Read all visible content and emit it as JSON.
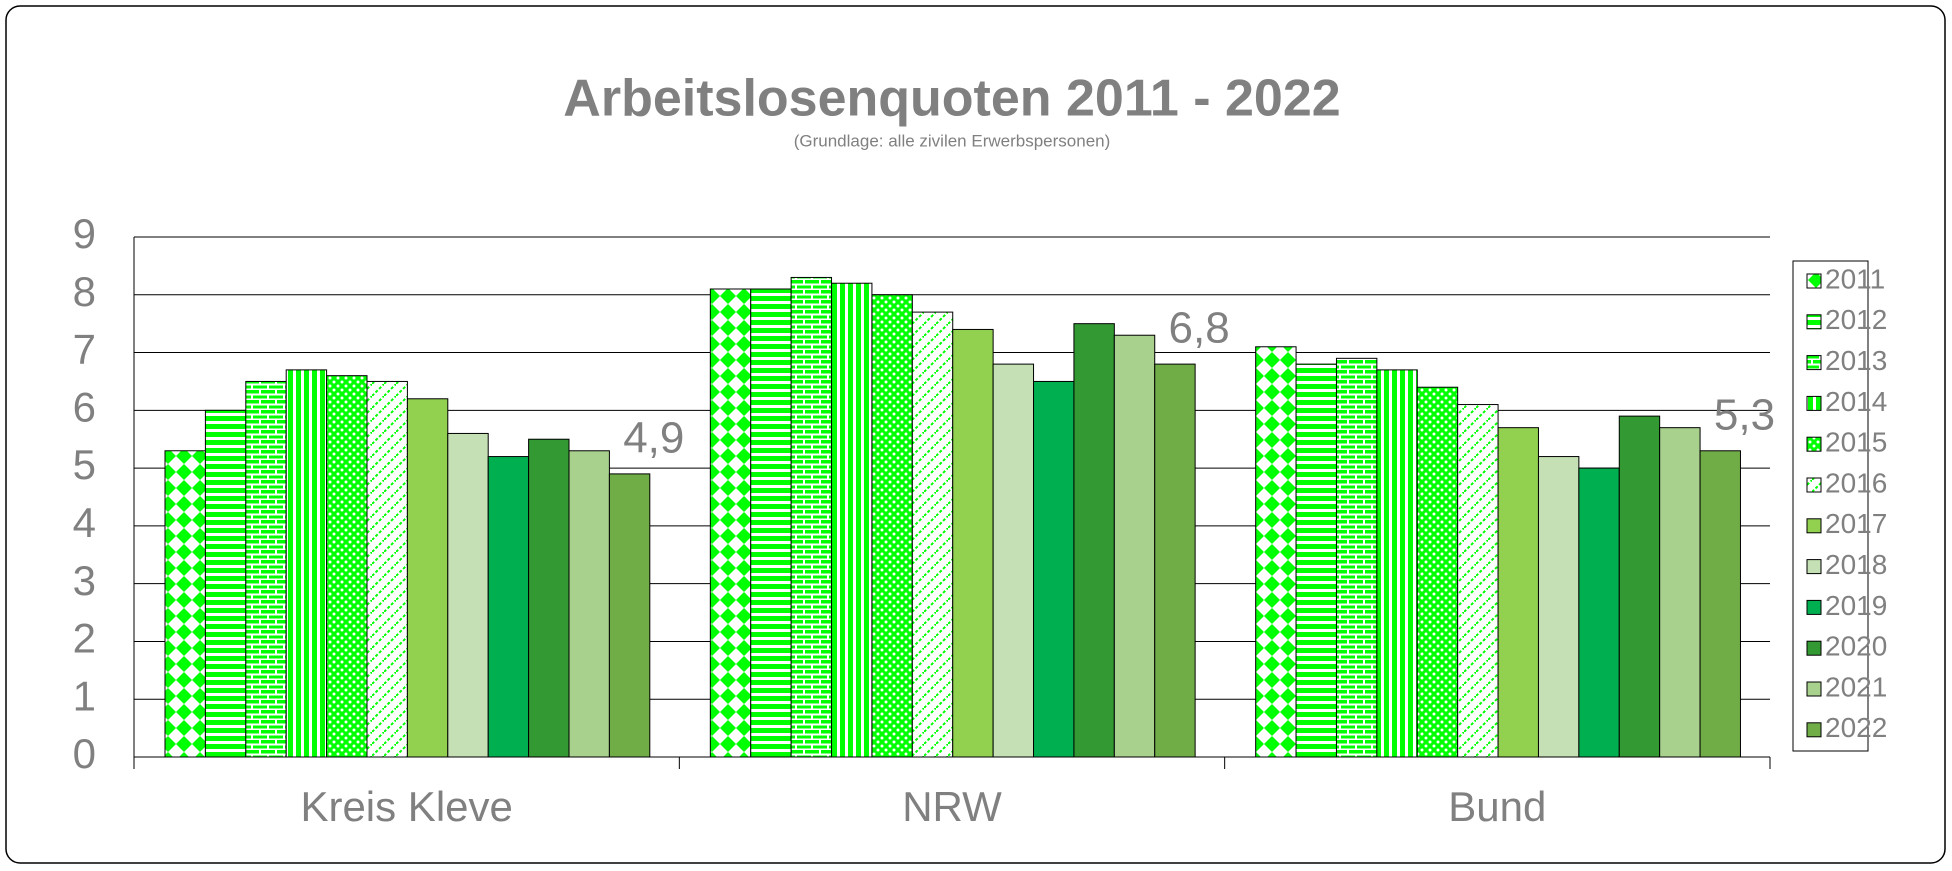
{
  "chart_data": {
    "type": "bar",
    "title": "Arbeitslosenquoten 2011 - 2022",
    "subtitle": "(Grundlage: alle zivilen Erwerbspersonen)",
    "categories": [
      "Kreis Kleve",
      "NRW",
      "Bund"
    ],
    "series": [
      {
        "name": "2011",
        "color": "#00ff00",
        "values": [
          5.3,
          8.1,
          7.1
        ]
      },
      {
        "name": "2012",
        "color": "#00ff00",
        "values": [
          6.0,
          8.1,
          6.8
        ]
      },
      {
        "name": "2013",
        "color": "#00ff00",
        "values": [
          6.5,
          8.3,
          6.9
        ]
      },
      {
        "name": "2014",
        "color": "#00ff00",
        "values": [
          6.7,
          8.2,
          6.7
        ]
      },
      {
        "name": "2015",
        "color": "#00ff00",
        "values": [
          6.6,
          8.0,
          6.4
        ]
      },
      {
        "name": "2016",
        "color": "#00ff00",
        "values": [
          6.5,
          7.7,
          6.1
        ]
      },
      {
        "name": "2017",
        "color": "#92d050",
        "values": [
          6.2,
          7.4,
          5.7
        ]
      },
      {
        "name": "2018",
        "color": "#c5e0b4",
        "values": [
          5.6,
          6.8,
          5.2
        ]
      },
      {
        "name": "2019",
        "color": "#00b050",
        "values": [
          5.2,
          6.5,
          5.0
        ]
      },
      {
        "name": "2020",
        "color": "#339933",
        "values": [
          5.5,
          7.5,
          5.9
        ]
      },
      {
        "name": "2021",
        "color": "#a9d18e",
        "values": [
          5.3,
          7.3,
          5.7
        ]
      },
      {
        "name": "2022",
        "color": "#70ad47",
        "values": [
          4.9,
          6.8,
          5.3
        ],
        "value_labels": [
          "4,9",
          "6,8",
          "5,3"
        ]
      }
    ],
    "ylim": [
      0,
      9
    ],
    "yticks": [
      0,
      1,
      2,
      3,
      4,
      5,
      6,
      7,
      8,
      9
    ],
    "grid": true,
    "legend": "right"
  }
}
